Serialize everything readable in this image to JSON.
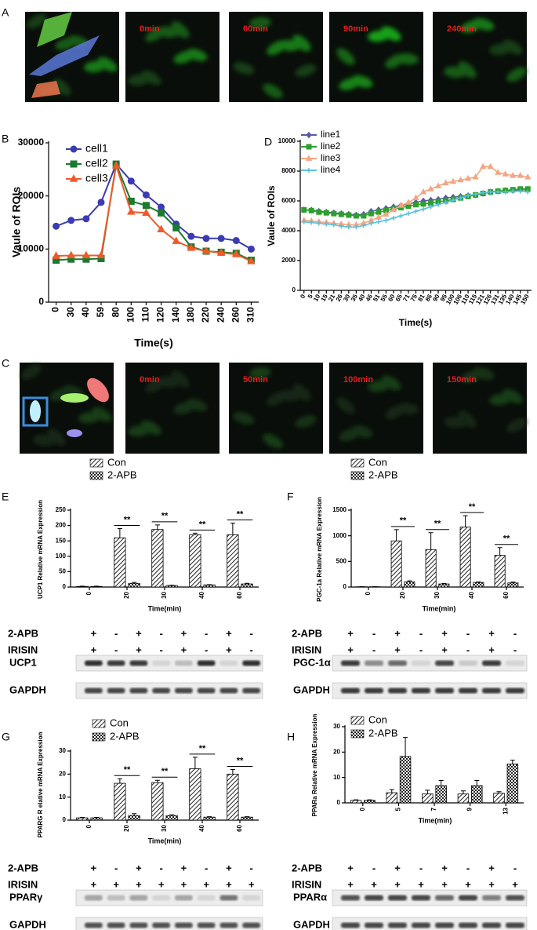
{
  "images": {
    "A": {
      "letter": "A",
      "labels": [
        "0min",
        "60min",
        "90min",
        "240min"
      ]
    },
    "C": {
      "letter": "C",
      "labels": [
        "0min",
        "50min",
        "100min",
        "150min"
      ]
    }
  },
  "chart_data": [
    {
      "type": "line",
      "panel": "B",
      "xlabel": "Time(s)",
      "ylabel": "Vaule of ROIs",
      "categories": [
        "0",
        "30",
        "40",
        "59",
        "80",
        "100",
        "110",
        "120",
        "140",
        "180",
        "220",
        "240",
        "260",
        "310"
      ],
      "ylim": [
        0,
        30000
      ],
      "yticks": [
        0,
        10000,
        20000,
        30000
      ],
      "legend": "upper left",
      "series": [
        {
          "name": "cell1",
          "color": "#3b3bb3",
          "marker": "circle",
          "values": [
            14300,
            15400,
            15700,
            18800,
            26000,
            22800,
            20200,
            17900,
            14700,
            12400,
            12000,
            12000,
            11600,
            10000
          ]
        },
        {
          "name": "cell2",
          "color": "#1a7a2e",
          "marker": "square",
          "values": [
            7900,
            8100,
            8100,
            8200,
            26000,
            19000,
            18200,
            16800,
            14000,
            10400,
            9600,
            9400,
            9200,
            7900
          ]
        },
        {
          "name": "cell3",
          "color": "#f05a28",
          "marker": "triangle",
          "values": [
            8700,
            8800,
            8800,
            8800,
            25700,
            17000,
            16800,
            13700,
            11500,
            10200,
            9600,
            9300,
            9000,
            7700
          ]
        }
      ]
    },
    {
      "type": "line",
      "panel": "D",
      "xlabel": "Time(s)",
      "ylabel": "Vaule of ROIs",
      "categories": [
        "0",
        "5",
        "10",
        "15",
        "21",
        "26",
        "30",
        "35",
        "40",
        "46",
        "51",
        "55",
        "60",
        "65",
        "71",
        "75",
        "81",
        "86",
        "90",
        "95",
        "100",
        "106",
        "110",
        "115",
        "121",
        "126",
        "131",
        "135",
        "140",
        "145",
        "150"
      ],
      "ylim": [
        0,
        10000
      ],
      "yticks": [
        0,
        2000,
        4000,
        6000,
        8000,
        10000
      ],
      "legend": "upper left",
      "series": [
        {
          "name": "line1",
          "color": "#5a5aa8",
          "marker": "diamond",
          "values": [
            5400,
            5380,
            5300,
            5250,
            5200,
            5150,
            5100,
            5050,
            5100,
            5300,
            5400,
            5500,
            5600,
            5700,
            5800,
            5900,
            6000,
            6050,
            6100,
            6200,
            6250,
            6300,
            6350,
            6400,
            6500,
            6600,
            6650,
            6700,
            6700,
            6750,
            6750
          ]
        },
        {
          "name": "line2",
          "color": "#2ca02c",
          "marker": "square",
          "values": [
            5400,
            5350,
            5250,
            5200,
            5150,
            5100,
            5050,
            5000,
            5000,
            5150,
            5250,
            5350,
            5450,
            5550,
            5650,
            5750,
            5800,
            5850,
            5950,
            6000,
            6100,
            6200,
            6300,
            6400,
            6500,
            6600,
            6650,
            6700,
            6750,
            6800,
            6800
          ]
        },
        {
          "name": "line3",
          "color": "#f4a582",
          "marker": "triangle",
          "values": [
            4700,
            4650,
            4600,
            4550,
            4500,
            4450,
            4400,
            4400,
            4500,
            4700,
            4900,
            5100,
            5400,
            5700,
            5900,
            6200,
            6600,
            6800,
            7000,
            7200,
            7300,
            7400,
            7500,
            7600,
            8300,
            8300,
            7900,
            7800,
            7700,
            7700,
            7600
          ]
        },
        {
          "name": "line4",
          "color": "#5bc0de",
          "marker": "cross",
          "values": [
            4600,
            4550,
            4500,
            4450,
            4400,
            4300,
            4250,
            4250,
            4350,
            4500,
            4600,
            4700,
            4850,
            5000,
            5150,
            5300,
            5450,
            5600,
            5750,
            5900,
            6050,
            6200,
            6350,
            6450,
            6550,
            6600,
            6600,
            6600,
            6650,
            6650,
            6600
          ]
        }
      ]
    },
    {
      "type": "bar",
      "panel": "E",
      "xlabel": "Time(min)",
      "ylabel": "UCP1 Relative mRNA Expression",
      "categories": [
        "0",
        "20",
        "30",
        "40",
        "60"
      ],
      "ylim": [
        0,
        250
      ],
      "yticks": [
        0,
        50,
        100,
        150,
        200,
        250
      ],
      "significance": [
        null,
        "**",
        "**",
        "**",
        "**"
      ],
      "series": [
        {
          "name": "Con",
          "pattern": "hatch",
          "values": [
            2,
            160,
            187,
            170,
            170
          ],
          "errors": [
            1,
            30,
            15,
            5,
            38
          ]
        },
        {
          "name": "2-APB",
          "pattern": "check",
          "values": [
            2,
            12,
            5,
            7,
            10
          ],
          "errors": [
            1,
            3,
            1,
            1,
            2
          ]
        }
      ]
    },
    {
      "type": "bar",
      "panel": "F",
      "xlabel": "Time(min)",
      "ylabel": "PGC-1a Relative mRNA Expression",
      "categories": [
        "0",
        "20",
        "30",
        "40",
        "60"
      ],
      "ylim": [
        0,
        1500
      ],
      "yticks": [
        0,
        500,
        1000,
        1500
      ],
      "significance": [
        null,
        "**",
        "**",
        "**",
        "**"
      ],
      "series": [
        {
          "name": "Con",
          "pattern": "hatch",
          "values": [
            5,
            900,
            730,
            1170,
            620
          ],
          "errors": [
            2,
            220,
            330,
            220,
            150
          ]
        },
        {
          "name": "2-APB",
          "pattern": "check",
          "values": [
            5,
            100,
            60,
            90,
            80
          ],
          "errors": [
            2,
            20,
            10,
            10,
            15
          ]
        }
      ]
    },
    {
      "type": "bar",
      "panel": "G",
      "xlabel": "Time(min)",
      "ylabel": "PPARG R elative mRNA Expression",
      "categories": [
        "0",
        "20",
        "30",
        "40",
        "60"
      ],
      "ylim": [
        0,
        30
      ],
      "yticks": [
        0,
        10,
        20,
        30
      ],
      "significance": [
        null,
        "**",
        "**",
        "**",
        "**"
      ],
      "series": [
        {
          "name": "Con",
          "pattern": "hatch",
          "values": [
            1,
            16,
            16.3,
            22.3,
            20
          ],
          "errors": [
            0.2,
            2,
            1,
            5,
            2
          ]
        },
        {
          "name": "2-APB",
          "pattern": "check",
          "values": [
            1,
            2,
            2,
            1.3,
            1.3
          ],
          "errors": [
            0.2,
            0.8,
            0.3,
            0.2,
            0.2
          ]
        }
      ]
    },
    {
      "type": "bar",
      "panel": "H",
      "xlabel": "Time(min)",
      "ylabel": "PPARa Relative mRNA Expression",
      "categories": [
        "0",
        "5",
        "7",
        "9",
        "13"
      ],
      "ylim": [
        0,
        30
      ],
      "yticks": [
        0,
        10,
        20,
        30
      ],
      "series": [
        {
          "name": "Con",
          "pattern": "hatch",
          "values": [
            1,
            4,
            3.5,
            3.5,
            3.8
          ],
          "errors": [
            0.2,
            1.2,
            1.5,
            1.2,
            0.6
          ]
        },
        {
          "name": "2-APB",
          "pattern": "check",
          "values": [
            1,
            18.3,
            6.8,
            6.8,
            15.3
          ],
          "errors": [
            0.2,
            7.5,
            2,
            2,
            1.5
          ]
        }
      ]
    }
  ],
  "blots": [
    {
      "rows": [
        {
          "name": "2-APB",
          "signs": [
            "+",
            "-",
            "+",
            "-",
            "+",
            "-",
            "+",
            "-"
          ]
        },
        {
          "name": "IRISIN",
          "signs": [
            "+",
            "-",
            "+",
            "-",
            "+",
            "-",
            "+",
            "-"
          ]
        }
      ],
      "bands": [
        "UCP1",
        "GAPDH"
      ]
    },
    {
      "rows": [
        {
          "name": "2-APB",
          "signs": [
            "+",
            "-",
            "+",
            "-",
            "+",
            "-",
            "+",
            "-"
          ]
        },
        {
          "name": "IRISIN",
          "signs": [
            "+",
            "-",
            "+",
            "-",
            "+",
            "-",
            "+",
            "-"
          ]
        }
      ],
      "bands": [
        "PGC-1α",
        "GAPDH"
      ]
    },
    {
      "rows": [
        {
          "name": "2-APB",
          "signs": [
            "+",
            "-",
            "+",
            "-",
            "+",
            "-",
            "+",
            "-"
          ]
        },
        {
          "name": "IRISIN",
          "signs": [
            "+",
            "+",
            "+",
            "+",
            "+",
            "+",
            "+",
            "+"
          ]
        }
      ],
      "bands": [
        "PPARγ",
        "GAPDH"
      ]
    },
    {
      "rows": [
        {
          "name": "2-APB",
          "signs": [
            "+",
            "-",
            "+",
            "-",
            "+",
            "-",
            "+",
            "-"
          ]
        },
        {
          "name": "IRISIN",
          "signs": [
            "+",
            "+",
            "+",
            "+",
            "+",
            "+",
            "+",
            "+"
          ]
        }
      ],
      "bands": [
        "PPARα",
        "GAPDH"
      ]
    }
  ]
}
